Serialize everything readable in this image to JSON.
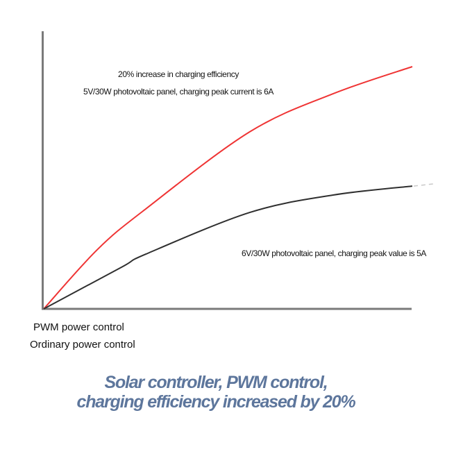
{
  "annotations": {
    "pwm_note_line1": "20% increase in charging efficiency",
    "pwm_note_line2": "5V/30W photovoltaic panel, charging peak current is 6A",
    "ordinary_note": "6V/30W photovoltaic panel, charging peak value is 5A"
  },
  "legend": {
    "pwm_label": "PWM power control",
    "ordinary_label": "Ordinary power control"
  },
  "title": {
    "line1": "Solar controller, PWM control,",
    "line2": "charging efficiency increased by 20%"
  },
  "colors": {
    "pwm_curve": "#ef3434",
    "ordinary_curve": "#2f2f2f",
    "axis": "#7a7a7a",
    "title_text": "#5d769c",
    "annotation_text": "#111111",
    "tail_dash": "#c9c9c9"
  },
  "chart_data": {
    "type": "line",
    "title": "Solar controller, PWM control, charging efficiency increased by 20%",
    "xlabel": "",
    "ylabel": "",
    "grid": false,
    "axes_tick_labels": false,
    "legend_position": "below-left",
    "x_range": [
      0,
      100
    ],
    "y_range": [
      0,
      1
    ],
    "series": [
      {
        "name": "PWM power control",
        "color": "#ef3434",
        "annotation": "20% increase in charging efficiency — 5V/30W photovoltaic panel, charging peak current is 6A",
        "points": [
          [
            0,
            0
          ],
          [
            14.5,
            0.244
          ],
          [
            27.7,
            0.413
          ],
          [
            55.9,
            0.731
          ],
          [
            78.5,
            0.888
          ],
          [
            100,
            1.0
          ]
        ]
      },
      {
        "name": "Ordinary power control",
        "color": "#2f2f2f",
        "annotation": "6V/30W photovoltaic panel, charging peak value is 5A",
        "points": [
          [
            0,
            0
          ],
          [
            21.1,
            0.172
          ],
          [
            27.7,
            0.226
          ],
          [
            55.9,
            0.398
          ],
          [
            78.5,
            0.47
          ],
          [
            100,
            0.507
          ]
        ],
        "tail_dashed": true
      }
    ]
  }
}
